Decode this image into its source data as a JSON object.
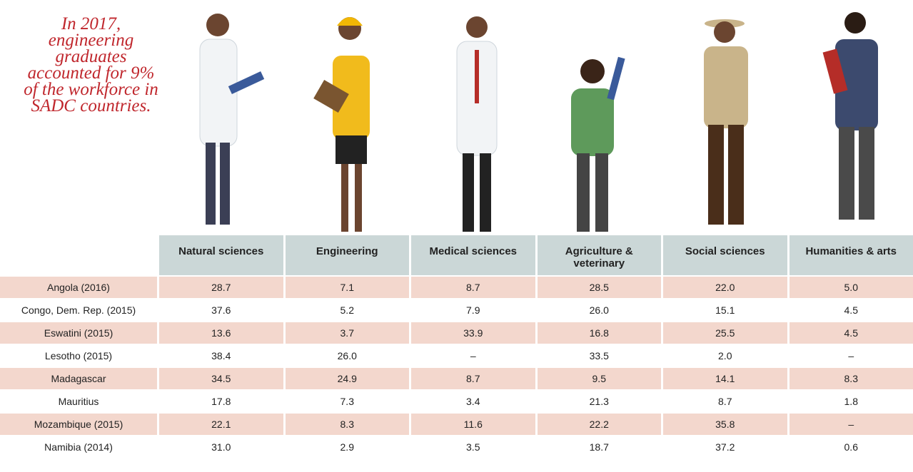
{
  "note": {
    "lines": [
      "In 2017,",
      "engineering",
      "graduates",
      "accounted for 9%",
      "of the workforce in",
      "SADC countries."
    ]
  },
  "table": {
    "columns": [
      "Natural sciences",
      "Engineering",
      "Medical sciences",
      "Agriculture & veterinary",
      "Social sciences",
      "Humanities & arts"
    ],
    "rows": [
      [
        "Angola (2016)",
        "28.7",
        "7.1",
        "8.7",
        "28.5",
        "22.0",
        "5.0"
      ],
      [
        "Congo, Dem. Rep. (2015)",
        "37.6",
        "5.2",
        "7.9",
        "26.0",
        "15.1",
        "4.5"
      ],
      [
        "Eswatini (2015)",
        "13.6",
        "3.7",
        "33.9",
        "16.8",
        "25.5",
        "4.5"
      ],
      [
        "Lesotho (2015)",
        "38.4",
        "26.0",
        "–",
        "33.5",
        "2.0",
        "–"
      ],
      [
        "Madagascar",
        "34.5",
        "24.9",
        "8.7",
        "9.5",
        "14.1",
        "8.3"
      ],
      [
        "Mauritius",
        "17.8",
        "7.3",
        "3.4",
        "21.3",
        "8.7",
        "1.8"
      ],
      [
        "Mozambique (2015)",
        "22.1",
        "8.3",
        "11.6",
        "22.2",
        "35.8",
        "–"
      ],
      [
        "Namibia (2014)",
        "31.0",
        "2.9",
        "3.5",
        "18.7",
        "37.2",
        "0.6"
      ]
    ]
  }
}
